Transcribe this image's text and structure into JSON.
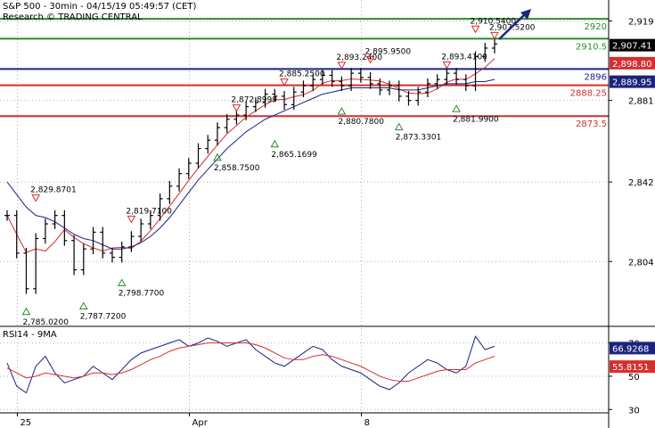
{
  "header": {
    "title": "S&P 500 - 30min - 04/15/19 05:49:57 (CET)",
    "subtitle": "Research © TRADING CENTRAL"
  },
  "chart_data": [
    {
      "type": "line",
      "title": "S&P 500 - 30min - 04/15/19 05:49:57 (CET)",
      "ylim": [
        2773,
        2929
      ],
      "y_ticks": [
        "2,919",
        "2,881",
        "2,842",
        "2,804"
      ],
      "y_tick_values": [
        2919,
        2881,
        2842,
        2804
      ],
      "x_ticks": [
        "25",
        "Apr",
        "8"
      ],
      "x_tick_index": [
        2,
        20,
        38
      ],
      "grid": true,
      "levels": [
        {
          "label": "2920",
          "value": 2920,
          "color": "#2e8b2e"
        },
        {
          "label": "2910.5",
          "value": 2910.5,
          "color": "#2e8b2e"
        },
        {
          "label": "2896",
          "value": 2896,
          "color": "#1a237e"
        },
        {
          "label": "2888.25",
          "value": 2888.25,
          "color": "#d32f2f"
        },
        {
          "label": "2873.5",
          "value": 2873.5,
          "color": "#d32f2f"
        }
      ],
      "price_tags": [
        {
          "label": "2,907.41",
          "value": 2907.41,
          "color": "#000000"
        },
        {
          "label": "2,898.80",
          "value": 2898.8,
          "color": "#d32f2f"
        },
        {
          "label": "2,889.95",
          "value": 2889.95,
          "color": "#1a237e"
        }
      ],
      "series": [
        {
          "values": [
            2826,
            2808,
            2791,
            2815,
            2822,
            2826,
            2814,
            2800,
            2810,
            2818,
            2808,
            2806,
            2811,
            2816,
            2822,
            2826,
            2834,
            2840,
            2846,
            2851,
            2858,
            2862,
            2868,
            2872,
            2874,
            2878,
            2880,
            2884,
            2883,
            2879,
            2885,
            2888,
            2891,
            2893,
            2890,
            2888,
            2894,
            2892,
            2889,
            2886,
            2888,
            2883,
            2881,
            2885,
            2889,
            2891,
            2894,
            2891,
            2888,
            2902,
            2906,
            2908
          ]
        },
        {
          "values": [
            2842,
            2836,
            2830,
            2826,
            2825,
            2823,
            2820,
            2817,
            2815,
            2814,
            2812,
            2810,
            2810,
            2811,
            2813,
            2816,
            2820,
            2825,
            2831,
            2837,
            2843,
            2848,
            2853,
            2858,
            2862,
            2866,
            2869,
            2872,
            2874,
            2876,
            2878,
            2880,
            2882,
            2884,
            2885,
            2886,
            2887,
            2887,
            2887,
            2887,
            2887,
            2886,
            2886,
            2886,
            2887,
            2888,
            2889,
            2889,
            2889,
            2890,
            2890,
            2891
          ]
        }
      ],
      "annotations": [
        {
          "label": "2,829.8701",
          "value": 2829.87,
          "index": 3,
          "kind": "high"
        },
        {
          "label": "2,819.7100",
          "value": 2819.71,
          "index": 13,
          "kind": "high"
        },
        {
          "label": "2,872.8999",
          "value": 2872.9,
          "index": 24,
          "kind": "high"
        },
        {
          "label": "2,885.2500",
          "value": 2885.25,
          "index": 29,
          "kind": "high"
        },
        {
          "label": "2,893.2400",
          "value": 2893.24,
          "index": 35,
          "kind": "high"
        },
        {
          "label": "2,895.9500",
          "value": 2895.95,
          "index": 38,
          "kind": "high"
        },
        {
          "label": "2,893.4100",
          "value": 2893.41,
          "index": 46,
          "kind": "high"
        },
        {
          "label": "2,910.5400",
          "value": 2910.54,
          "index": 49,
          "kind": "high"
        },
        {
          "label": "2,907.5200",
          "value": 2907.52,
          "index": 51,
          "kind": "high"
        },
        {
          "label": "2,785.0200",
          "value": 2785.02,
          "index": 2,
          "kind": "low"
        },
        {
          "label": "2,787.7200",
          "value": 2787.72,
          "index": 8,
          "kind": "low"
        },
        {
          "label": "2,798.7700",
          "value": 2798.77,
          "index": 12,
          "kind": "low"
        },
        {
          "label": "2,858.7500",
          "value": 2858.75,
          "index": 22,
          "kind": "low"
        },
        {
          "label": "2,865.1699",
          "value": 2865.17,
          "index": 28,
          "kind": "low"
        },
        {
          "label": "2,880.7800",
          "value": 2880.78,
          "index": 35,
          "kind": "low"
        },
        {
          "label": "2,873.3301",
          "value": 2873.33,
          "index": 41,
          "kind": "low"
        },
        {
          "label": "2,881.9900",
          "value": 2881.99,
          "index": 47,
          "kind": "low"
        }
      ]
    },
    {
      "type": "line",
      "title": "RSI14 - 9MA",
      "ylim": [
        28,
        80
      ],
      "y_ticks": [
        "70",
        "50",
        "30"
      ],
      "y_tick_values": [
        70,
        50,
        30
      ],
      "price_tags": [
        {
          "label": "66.9268",
          "value": 66.93,
          "color": "#1a237e"
        },
        {
          "label": "55.8151",
          "value": 55.8,
          "color": "#d32f2f"
        }
      ],
      "series": [
        {
          "values": [
            58,
            44,
            40,
            56,
            62,
            52,
            46,
            48,
            50,
            56,
            52,
            48,
            54,
            60,
            64,
            66,
            68,
            70,
            72,
            68,
            70,
            73,
            71,
            68,
            70,
            72,
            66,
            62,
            58,
            56,
            60,
            64,
            68,
            66,
            60,
            56,
            54,
            52,
            48,
            44,
            42,
            46,
            52,
            56,
            60,
            58,
            54,
            52,
            56,
            74,
            66,
            68
          ]
        },
        {
          "values": [
            55,
            52,
            49,
            50,
            52,
            51,
            50,
            49,
            50,
            52,
            52,
            51,
            52,
            54,
            57,
            60,
            62,
            65,
            67,
            68,
            69,
            70,
            70,
            70,
            70,
            70,
            69,
            67,
            64,
            61,
            60,
            60,
            62,
            63,
            62,
            60,
            58,
            56,
            53,
            50,
            48,
            47,
            47,
            49,
            51,
            53,
            54,
            54,
            54,
            58,
            60,
            62
          ]
        }
      ]
    }
  ],
  "colors": {
    "candle": "#000000",
    "ma_fast": "#d32f2f",
    "ma_slow": "#1a237e",
    "arrow": "#1a237e",
    "high_marker": "#d32f2f",
    "low_marker": "#2e8b2e",
    "grid": "#b0b0b0",
    "rsi_line": "#1a237e",
    "rsi_ma": "#d32f2f"
  }
}
